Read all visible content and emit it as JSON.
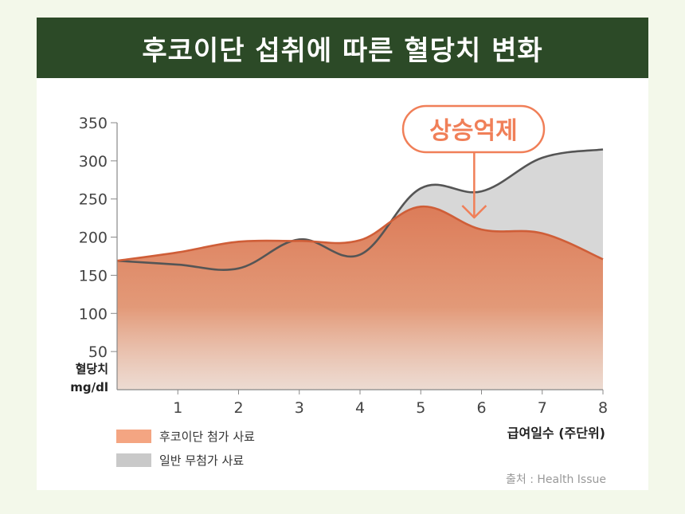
{
  "title": "후코이단 섭취에 따른 혈당치 변화",
  "source": "출처 : Health Issue",
  "colors": {
    "banner": "#2c4a27",
    "fucoidan": "#e2805a",
    "normal": "#d3d3d3",
    "normal_line": "#555555",
    "highlight": "#f07f58"
  },
  "chart_data": {
    "type": "area",
    "title": "후코이단 섭취에 따른 혈당치 변화",
    "xlabel": "급여일수 (주단위)",
    "ylabel": "혈당치 mg/dl",
    "ylabel_lines": [
      "혈당치",
      "mg/dl"
    ],
    "x": [
      0,
      1,
      2,
      3,
      4,
      5,
      6,
      7,
      8
    ],
    "x_ticks": [
      "1",
      "2",
      "3",
      "4",
      "5",
      "6",
      "7",
      "8"
    ],
    "y_ticks": [
      "350",
      "300",
      "250",
      "200",
      "150",
      "100",
      "50"
    ],
    "ylim": [
      0,
      350
    ],
    "xlim": [
      0,
      8
    ],
    "series": [
      {
        "name": "일반 무첨가 사료",
        "values": [
          169,
          164,
          159,
          197,
          177,
          264,
          260,
          304,
          315
        ],
        "color": "#d3d3d3"
      },
      {
        "name": "후코이단 첨가 사료",
        "values": [
          169,
          180,
          194,
          195,
          196,
          240,
          210,
          205,
          171
        ],
        "color": "#e2805a"
      }
    ],
    "annotation": "상승억제",
    "legend": [
      "후코이단 첨가 사료",
      "일반 무첨가 사료"
    ],
    "legend_position": "bottom-left"
  }
}
